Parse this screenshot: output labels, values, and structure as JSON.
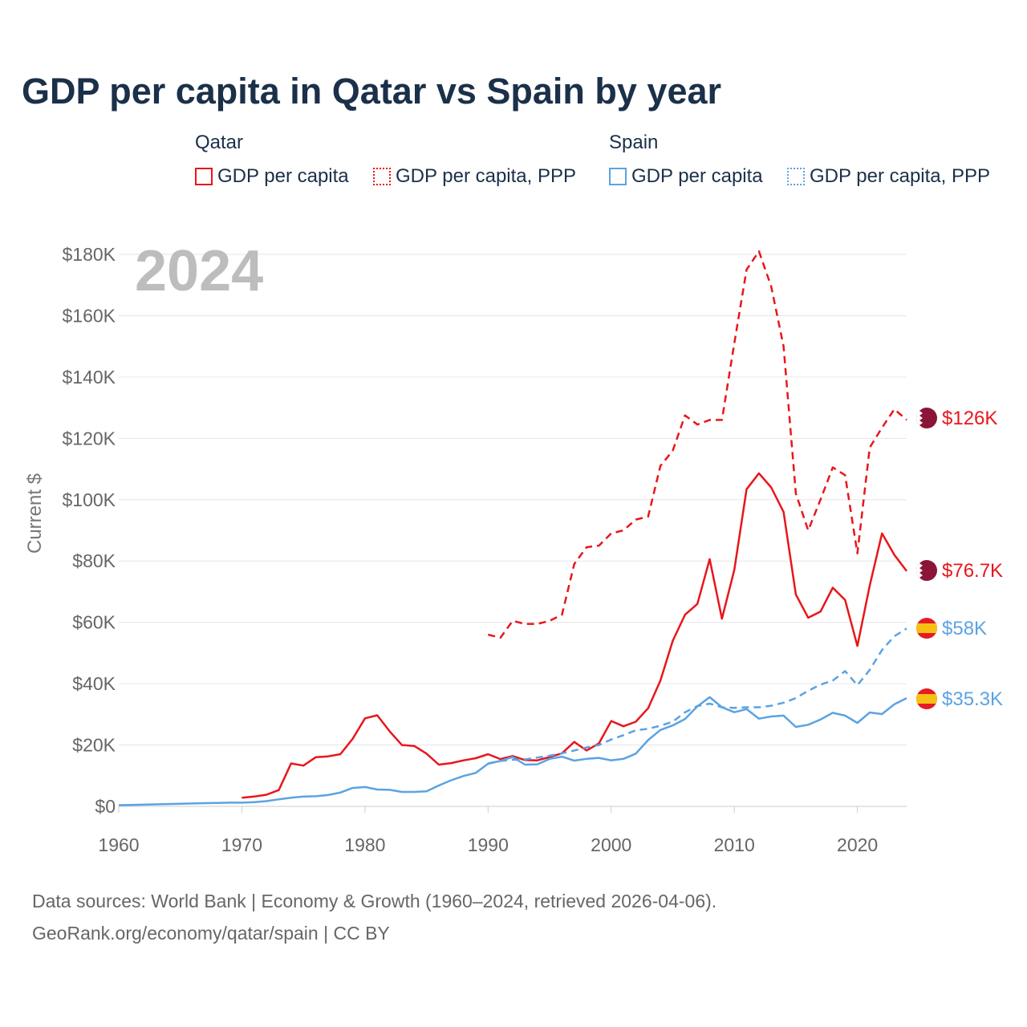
{
  "chart_data": {
    "type": "line",
    "title": "GDP per capita in Qatar vs Spain by year",
    "xlabel": "",
    "ylabel": "Current $",
    "xlim": [
      1960,
      2024
    ],
    "ylim": [
      0,
      180000
    ],
    "x_ticks": [
      1960,
      1970,
      1980,
      1990,
      2000,
      2010,
      2020
    ],
    "x_tick_labels": [
      "1960",
      "1970",
      "1980",
      "1990",
      "2000",
      "2010",
      "2020"
    ],
    "y_ticks": [
      0,
      20000,
      40000,
      60000,
      80000,
      100000,
      120000,
      140000,
      160000,
      180000
    ],
    "y_tick_labels": [
      "$0",
      "$20K",
      "$40K",
      "$60K",
      "$80K",
      "$100K",
      "$120K",
      "$140K",
      "$160K",
      "$180K"
    ],
    "year_label": "2024",
    "legend": {
      "groups": [
        {
          "title": "Qatar",
          "items": [
            "GDP per capita",
            "GDP per capita, PPP"
          ]
        },
        {
          "title": "Spain",
          "items": [
            "GDP per capita",
            "GDP per capita, PPP"
          ]
        }
      ]
    },
    "series": [
      {
        "name": "Qatar GDP per capita",
        "country": "Qatar",
        "color": "#e8161b",
        "dash": "solid",
        "x": [
          1970,
          1971,
          1972,
          1973,
          1974,
          1975,
          1976,
          1977,
          1978,
          1979,
          1980,
          1981,
          1982,
          1983,
          1984,
          1985,
          1986,
          1987,
          1988,
          1989,
          1990,
          1991,
          1992,
          1993,
          1994,
          1995,
          1996,
          1997,
          1998,
          1999,
          2000,
          2001,
          2002,
          2003,
          2004,
          2005,
          2006,
          2007,
          2008,
          2009,
          2010,
          2011,
          2012,
          2013,
          2014,
          2015,
          2016,
          2017,
          2018,
          2019,
          2020,
          2021,
          2022,
          2023,
          2024
        ],
        "values": [
          2800,
          3200,
          3800,
          5300,
          14000,
          13300,
          16000,
          16300,
          17000,
          22000,
          28700,
          29700,
          24500,
          20000,
          19700,
          17200,
          13600,
          14100,
          15000,
          15700,
          17000,
          15400,
          16400,
          15100,
          15000,
          16100,
          17300,
          21000,
          18200,
          20500,
          27800,
          26100,
          27600,
          32000,
          41000,
          54000,
          62500,
          66000,
          80600,
          61200,
          77100,
          103400,
          108600,
          104000,
          96000,
          69100,
          61500,
          63500,
          71300,
          67300,
          52300,
          72000,
          89000,
          82000,
          76700
        ],
        "end_label": "$76.7K"
      },
      {
        "name": "Qatar GDP per capita, PPP",
        "country": "Qatar",
        "color": "#e8161b",
        "dash": "dashed",
        "x": [
          1990,
          1991,
          1992,
          1993,
          1994,
          1995,
          1996,
          1997,
          1998,
          1999,
          2000,
          2001,
          2002,
          2003,
          2004,
          2005,
          2006,
          2007,
          2008,
          2009,
          2010,
          2011,
          2012,
          2013,
          2014,
          2015,
          2016,
          2017,
          2018,
          2019,
          2020,
          2021,
          2022,
          2023,
          2024
        ],
        "values": [
          56000,
          55000,
          60500,
          59500,
          59500,
          60500,
          62500,
          79000,
          84500,
          85000,
          89000,
          90000,
          93500,
          94500,
          111000,
          116000,
          127500,
          124500,
          126000,
          126000,
          151000,
          175000,
          181000,
          169500,
          150000,
          102000,
          90000,
          100000,
          110500,
          108000,
          82500,
          117000,
          123500,
          129500,
          126000
        ],
        "end_label": "$126K"
      },
      {
        "name": "Spain GDP per capita",
        "country": "Spain",
        "color": "#5ba3e2",
        "dash": "solid",
        "x": [
          1960,
          1961,
          1962,
          1963,
          1964,
          1965,
          1966,
          1967,
          1968,
          1969,
          1970,
          1971,
          1972,
          1973,
          1974,
          1975,
          1976,
          1977,
          1978,
          1979,
          1980,
          1981,
          1982,
          1983,
          1984,
          1985,
          1986,
          1987,
          1988,
          1989,
          1990,
          1991,
          1992,
          1993,
          1994,
          1995,
          1996,
          1997,
          1998,
          1999,
          2000,
          2001,
          2002,
          2003,
          2004,
          2005,
          2006,
          2007,
          2008,
          2009,
          2010,
          2011,
          2012,
          2013,
          2014,
          2015,
          2016,
          2017,
          2018,
          2019,
          2020,
          2021,
          2022,
          2023,
          2024
        ],
        "values": [
          400,
          450,
          550,
          650,
          750,
          850,
          950,
          1050,
          1100,
          1200,
          1200,
          1350,
          1700,
          2300,
          2800,
          3200,
          3300,
          3700,
          4500,
          6000,
          6300,
          5500,
          5400,
          4700,
          4700,
          4900,
          6800,
          8500,
          9900,
          10900,
          13900,
          14800,
          16100,
          13600,
          13700,
          15500,
          16200,
          14900,
          15500,
          15800,
          15000,
          15500,
          17200,
          21600,
          24900,
          26400,
          28500,
          32600,
          35600,
          32300,
          30700,
          31700,
          28600,
          29300,
          29600,
          25900,
          26600,
          28300,
          30500,
          29600,
          27200,
          30600,
          30100,
          33300,
          35300
        ],
        "end_label": "$35.3K"
      },
      {
        "name": "Spain GDP per capita, PPP",
        "country": "Spain",
        "color": "#5ba3e2",
        "dash": "dashed",
        "x": [
          1990,
          1991,
          1992,
          1993,
          1994,
          1995,
          1996,
          1997,
          1998,
          1999,
          2000,
          2001,
          2002,
          2003,
          2004,
          2005,
          2006,
          2007,
          2008,
          2009,
          2010,
          2011,
          2012,
          2013,
          2014,
          2015,
          2016,
          2017,
          2018,
          2019,
          2020,
          2021,
          2022,
          2023,
          2024
        ],
        "values": [
          14000,
          14800,
          15200,
          15300,
          15900,
          16500,
          17300,
          18200,
          19200,
          20000,
          21800,
          23200,
          24800,
          25300,
          26300,
          27600,
          30700,
          32700,
          33500,
          32300,
          32100,
          32300,
          32300,
          32800,
          33800,
          35300,
          37700,
          39700,
          41000,
          44100,
          39500,
          44500,
          51000,
          55500,
          58000
        ],
        "end_label": "$58K"
      }
    ]
  },
  "footer": {
    "line1": "Data sources: World Bank | Economy & Growth (1960–2024, retrieved 2026-04-06).",
    "line2": "GeoRank.org/economy/qatar/spain | CC BY"
  }
}
